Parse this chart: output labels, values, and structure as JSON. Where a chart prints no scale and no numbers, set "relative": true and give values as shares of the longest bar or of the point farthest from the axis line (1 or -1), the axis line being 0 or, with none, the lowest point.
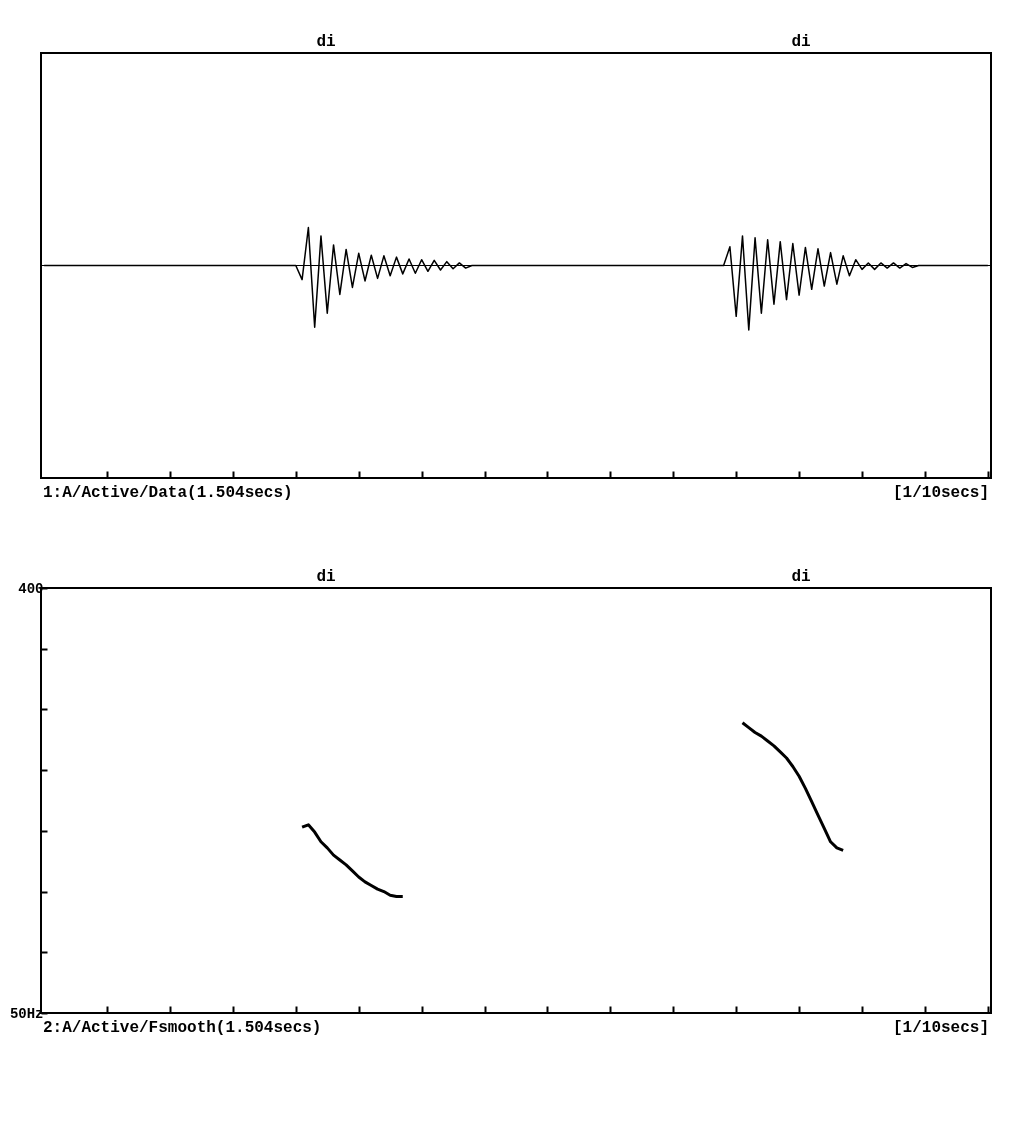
{
  "chart_data": [
    {
      "type": "line",
      "relative": true,
      "tick_labels": false,
      "categories": [
        null,
        null,
        null,
        null,
        null,
        null,
        null,
        null,
        null,
        null,
        null,
        null,
        null,
        null,
        null,
        null,
        null,
        null,
        null,
        null,
        null,
        null,
        null,
        null,
        null,
        null,
        null,
        null,
        null,
        null,
        null,
        null,
        null,
        null,
        null,
        null,
        null,
        null,
        null,
        null,
        null,
        null,
        null,
        null,
        null,
        null,
        null,
        null,
        null,
        null,
        null,
        null,
        null,
        null,
        null,
        null,
        null,
        null,
        null,
        null,
        null,
        null,
        null,
        null,
        null,
        null,
        null,
        null,
        null,
        null,
        null,
        null,
        null,
        null,
        null,
        null,
        null,
        null,
        null,
        null,
        null,
        null,
        null,
        null,
        null,
        null,
        null,
        null,
        null,
        null,
        null,
        null,
        null,
        null,
        null,
        null,
        null,
        null,
        null,
        null,
        null,
        null,
        null,
        null,
        null,
        null,
        null,
        null,
        null,
        null,
        null,
        null,
        null,
        null,
        null,
        null,
        null,
        null,
        null,
        null,
        null,
        null,
        null,
        null,
        null,
        null,
        null,
        null,
        null,
        null,
        null,
        null,
        null,
        null,
        null,
        null,
        null,
        null,
        null,
        null,
        null,
        null,
        null,
        null,
        null,
        null,
        null,
        null,
        null,
        null,
        null
      ],
      "series": [
        {
          "color": "#000000",
          "values": [
            0,
            0,
            0,
            0,
            0,
            0,
            0,
            0,
            0,
            0,
            0,
            0,
            0,
            0,
            0,
            0,
            0,
            0,
            0,
            0,
            0,
            0,
            0,
            0,
            0,
            0,
            0,
            0,
            0,
            0,
            0,
            0,
            0,
            0,
            0,
            0,
            0,
            0,
            0,
            0,
            0,
            -0.22,
            0.59,
            -0.96,
            0.46,
            -0.74,
            0.32,
            -0.45,
            0.25,
            -0.34,
            0.19,
            -0.24,
            0.16,
            -0.2,
            0.15,
            -0.16,
            0.13,
            -0.13,
            0.1,
            -0.12,
            0.09,
            -0.09,
            0.08,
            -0.07,
            0.06,
            -0.05,
            0.04,
            -0.04,
            0,
            0,
            0,
            0,
            0,
            0,
            0,
            0,
            0,
            0,
            0,
            0,
            0,
            0,
            0,
            0,
            0,
            0,
            0,
            0,
            0,
            0,
            0,
            0,
            0,
            0,
            0,
            0,
            0,
            0,
            0,
            0,
            0,
            0,
            0,
            0,
            0,
            0,
            0,
            0,
            0,
            0.29,
            -0.79,
            0.46,
            -1.0,
            0.43,
            -0.74,
            0.4,
            -0.6,
            0.37,
            -0.53,
            0.34,
            -0.46,
            0.28,
            -0.37,
            0.26,
            -0.32,
            0.2,
            -0.29,
            0.15,
            -0.16,
            0.09,
            -0.06,
            0.04,
            -0.06,
            0.04,
            -0.04,
            0.04,
            -0.04,
            0.03,
            -0.03,
            0,
            0,
            0,
            0,
            0,
            0,
            0,
            0,
            0,
            0,
            0,
            0
          ]
        }
      ],
      "annotations": [
        "di",
        "di",
        "1:A/Active/Data(1.504secs)",
        "[1/10secs]"
      ]
    },
    {
      "type": "line",
      "tick_labels": "y",
      "categories": [
        null,
        null,
        null,
        null,
        null,
        null,
        null,
        null,
        null,
        null,
        null,
        null,
        null,
        null,
        null,
        null,
        null,
        null,
        null,
        null,
        null,
        null,
        null,
        null,
        null,
        null,
        null,
        null,
        null,
        null,
        null,
        null,
        null,
        null,
        null,
        null,
        null,
        null,
        null,
        null,
        null,
        null,
        null,
        null,
        null,
        null,
        null,
        null,
        null,
        null,
        null,
        null,
        null,
        null,
        null,
        null,
        null,
        null,
        null,
        null,
        null,
        null,
        null,
        null,
        null,
        null,
        null,
        null,
        null,
        null,
        null,
        null,
        null,
        null,
        null,
        null,
        null,
        null,
        null,
        null,
        null,
        null,
        null,
        null,
        null,
        null,
        null,
        null,
        null,
        null,
        null,
        null,
        null,
        null,
        null,
        null,
        null,
        null,
        null,
        null,
        null,
        null,
        null,
        null,
        null,
        null,
        null,
        null,
        null,
        null,
        null,
        null,
        null,
        null,
        null,
        null,
        null,
        null,
        null,
        null,
        null,
        null,
        null,
        null,
        null,
        null,
        null,
        null,
        null,
        null,
        null,
        null,
        null,
        null,
        null,
        null,
        null,
        null,
        null,
        null,
        null,
        null,
        null,
        null,
        null,
        null,
        null,
        null,
        null,
        null,
        null
      ],
      "ylim": [
        50,
        400
      ],
      "yticks": [
        {
          "value": 50,
          "label": "50Hz"
        },
        {
          "value": 100,
          "label": null
        },
        {
          "value": 150,
          "label": null
        },
        {
          "value": 200,
          "label": null
        },
        {
          "value": 250,
          "label": null
        },
        {
          "value": 300,
          "label": null
        },
        {
          "value": 350,
          "label": null
        },
        {
          "value": 400,
          "label": "400"
        }
      ],
      "series": [
        {
          "color": "#000000",
          "values": [
            null,
            null,
            null,
            null,
            null,
            null,
            null,
            null,
            null,
            null,
            null,
            null,
            null,
            null,
            null,
            null,
            null,
            null,
            null,
            null,
            null,
            null,
            null,
            null,
            null,
            null,
            null,
            null,
            null,
            null,
            null,
            null,
            null,
            null,
            null,
            null,
            null,
            null,
            null,
            null,
            null,
            203,
            205,
            199,
            191,
            186,
            180,
            176,
            172,
            167,
            162,
            158,
            155,
            152,
            150,
            147,
            146,
            146,
            null,
            null,
            null,
            null,
            null,
            null,
            null,
            null,
            null,
            null,
            null,
            null,
            null,
            null,
            null,
            null,
            null,
            null,
            null,
            null,
            null,
            null,
            null,
            null,
            null,
            null,
            null,
            null,
            null,
            null,
            null,
            null,
            null,
            null,
            null,
            null,
            null,
            null,
            null,
            null,
            null,
            null,
            null,
            null,
            null,
            null,
            null,
            null,
            null,
            null,
            null,
            null,
            null,
            289,
            285,
            281,
            278,
            274,
            270,
            265,
            260,
            253,
            245,
            235,
            224,
            213,
            202,
            191,
            186,
            184,
            null,
            null,
            null,
            null,
            null,
            null,
            null,
            null,
            null,
            null,
            null,
            null,
            null,
            null,
            null,
            null,
            null,
            null,
            null,
            null,
            null,
            null,
            null
          ]
        }
      ],
      "annotations": [
        "di",
        "di",
        "2:A/Active/Fsmooth(1.504secs)",
        "[1/10secs]"
      ]
    }
  ]
}
